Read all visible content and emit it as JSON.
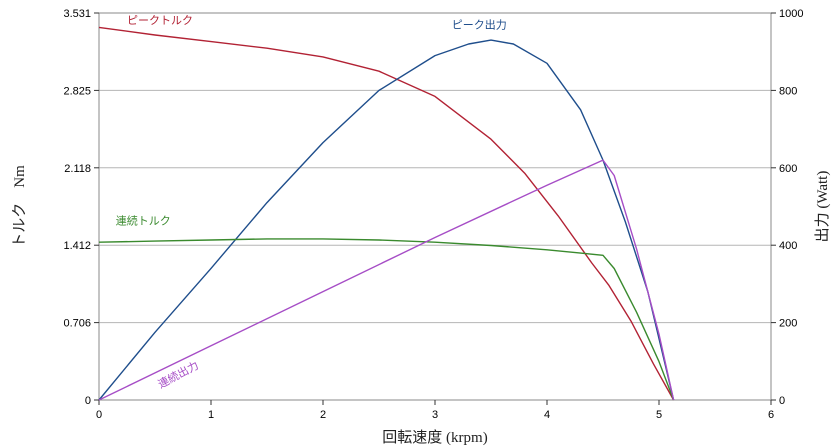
{
  "chart_data": {
    "type": "line",
    "xlabel": "回転速度 (krpm)",
    "ylabel_left": "トルク　Nm",
    "ylabel_right": "出力 (Watt)",
    "xlim": [
      0,
      6
    ],
    "ylim_left": [
      0,
      3.531
    ],
    "ylim_right": [
      0,
      1000
    ],
    "x_ticks": [
      "0",
      "1",
      "2",
      "3",
      "4",
      "5",
      "6"
    ],
    "y_left_ticks": [
      "0",
      "0.706",
      "1.412",
      "2.118",
      "2.825",
      "3.531"
    ],
    "y_right_ticks": [
      "0",
      "200",
      "400",
      "600",
      "800",
      "1000"
    ],
    "grid": true,
    "series": [
      {
        "name": "ピークトルク",
        "axis": "left",
        "color": "#b22234",
        "x": [
          0,
          0.5,
          1,
          1.5,
          2,
          2.5,
          3,
          3.5,
          3.8,
          4.1,
          4.4,
          4.55,
          4.75,
          4.95,
          5.13
        ],
        "y": [
          3.4,
          3.33,
          3.27,
          3.21,
          3.13,
          3.0,
          2.77,
          2.38,
          2.07,
          1.68,
          1.25,
          1.05,
          0.72,
          0.33,
          0
        ]
      },
      {
        "name": "ピーク出力",
        "axis": "right",
        "color": "#1f4e8c",
        "x": [
          0,
          0.5,
          1,
          1.5,
          2,
          2.5,
          3,
          3.3,
          3.5,
          3.7,
          4.0,
          4.3,
          4.5,
          4.7,
          4.9,
          5.13
        ],
        "y": [
          0,
          175,
          340,
          510,
          665,
          800,
          890,
          920,
          930,
          920,
          870,
          750,
          620,
          460,
          280,
          0
        ]
      },
      {
        "name": "連続トルク",
        "axis": "left",
        "color": "#3a8a2e",
        "x": [
          0,
          0.5,
          1,
          1.5,
          2,
          2.5,
          3,
          3.5,
          4.0,
          4.3,
          4.5,
          4.6,
          4.8,
          5.0,
          5.13
        ],
        "y": [
          1.44,
          1.45,
          1.46,
          1.47,
          1.47,
          1.46,
          1.44,
          1.41,
          1.37,
          1.34,
          1.32,
          1.2,
          0.8,
          0.35,
          0
        ]
      },
      {
        "name": "連続出力",
        "axis": "right",
        "color": "#a64dc6",
        "x": [
          0,
          1,
          2,
          3,
          4,
          4.5,
          4.6,
          4.8,
          5.0,
          5.13
        ],
        "y": [
          0,
          140,
          280,
          420,
          555,
          620,
          580,
          390,
          170,
          0
        ]
      }
    ]
  }
}
